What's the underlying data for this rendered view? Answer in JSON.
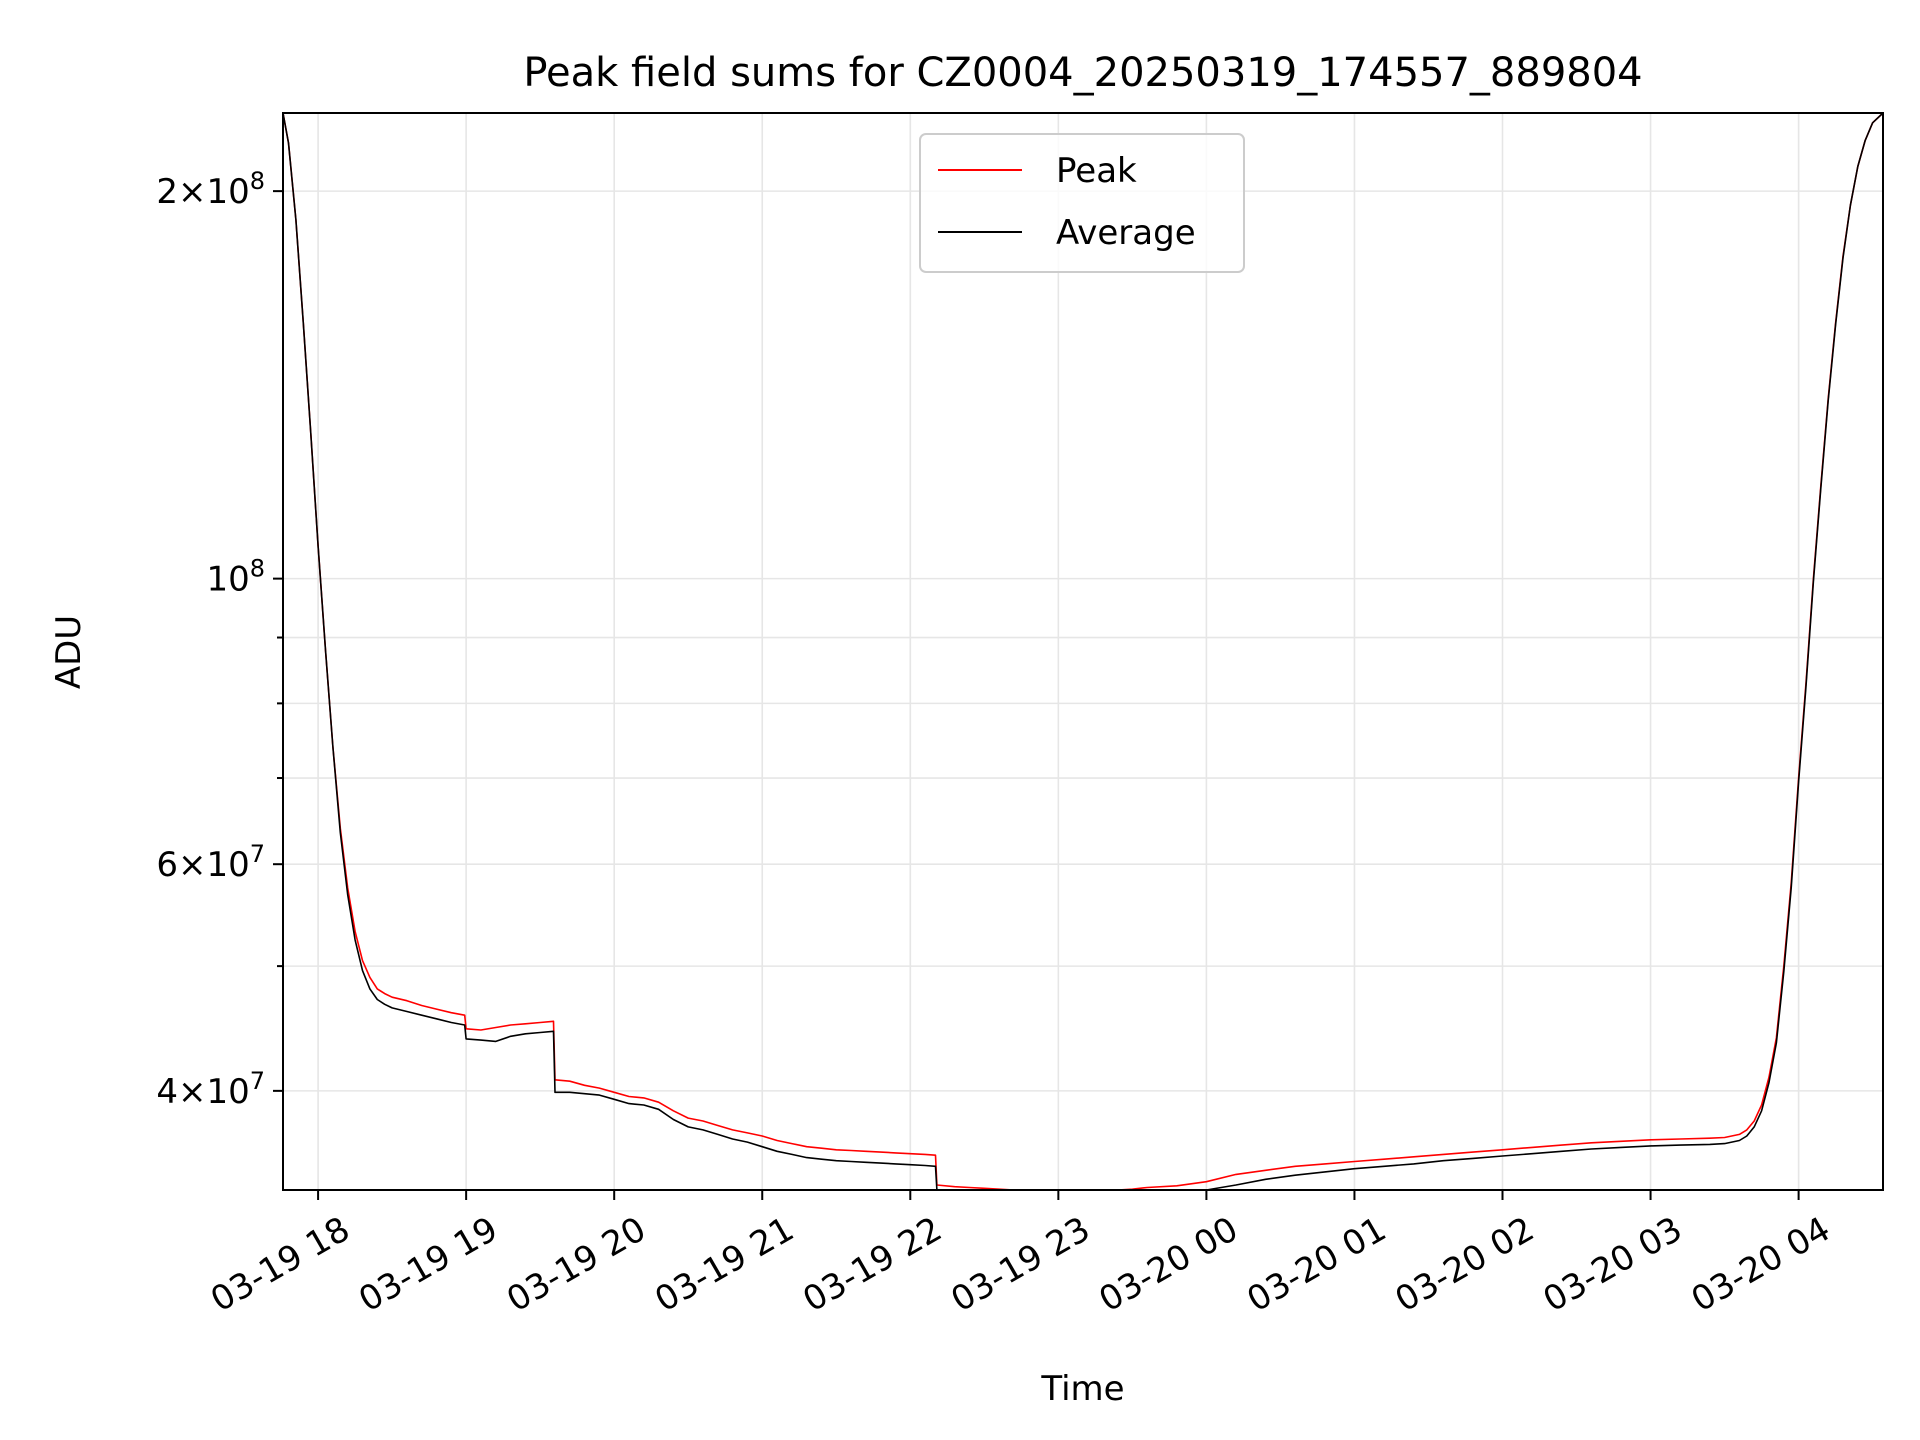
{
  "chart_data": {
    "type": "line",
    "title": "Peak field sums for CZ0004_20250319_174557_889804",
    "xlabel": "Time",
    "ylabel": "ADU",
    "yscale": "log",
    "x_unit": "hours since 03-19 17:00",
    "xlim": [
      0.763,
      11.57
    ],
    "ylim": [
      33500000.0,
      230000000.0
    ],
    "grid": true,
    "legend_position": "upper-center",
    "x_ticks": [
      {
        "value": 1,
        "label": "03-19 18"
      },
      {
        "value": 2,
        "label": "03-19 19"
      },
      {
        "value": 3,
        "label": "03-19 20"
      },
      {
        "value": 4,
        "label": "03-19 21"
      },
      {
        "value": 5,
        "label": "03-19 22"
      },
      {
        "value": 6,
        "label": "03-19 23"
      },
      {
        "value": 7,
        "label": "03-20 00"
      },
      {
        "value": 8,
        "label": "03-20 01"
      },
      {
        "value": 9,
        "label": "03-20 02"
      },
      {
        "value": 10,
        "label": "03-20 03"
      },
      {
        "value": 11,
        "label": "03-20 04"
      }
    ],
    "y_ticks": [
      {
        "value": 40000000,
        "mantissa": "4",
        "exp": "7"
      },
      {
        "value": 60000000,
        "mantissa": "6",
        "exp": "7"
      },
      {
        "value": 100000000,
        "mantissa": "",
        "exp": "8"
      },
      {
        "value": 200000000,
        "mantissa": "2",
        "exp": "8"
      }
    ],
    "y_minor_ticks": [
      50000000,
      70000000,
      80000000,
      90000000
    ],
    "series": [
      {
        "name": "Peak",
        "color": "#ff0000",
        "x": [
          0.763,
          0.8,
          0.85,
          0.9,
          0.95,
          1.0,
          1.05,
          1.1,
          1.15,
          1.2,
          1.25,
          1.3,
          1.35,
          1.4,
          1.45,
          1.5,
          1.6,
          1.7,
          1.8,
          1.9,
          1.99,
          2.0,
          2.1,
          2.2,
          2.3,
          2.4,
          2.5,
          2.59,
          2.6,
          2.7,
          2.8,
          2.9,
          3.0,
          3.1,
          3.2,
          3.3,
          3.4,
          3.5,
          3.6,
          3.7,
          3.8,
          3.9,
          4.0,
          4.1,
          4.2,
          4.3,
          4.4,
          4.5,
          4.6,
          4.7,
          4.8,
          4.9,
          5.0,
          5.1,
          5.17,
          5.18,
          5.3,
          5.4,
          5.5,
          5.6,
          5.7,
          5.8,
          5.99,
          6.0,
          6.1,
          6.2,
          6.3,
          6.4,
          6.5,
          6.6,
          6.8,
          7.0,
          7.2,
          7.4,
          7.6,
          7.8,
          8.0,
          8.2,
          8.4,
          8.6,
          8.8,
          9.0,
          9.2,
          9.4,
          9.6,
          9.8,
          10.0,
          10.2,
          10.4,
          10.5,
          10.6,
          10.65,
          10.7,
          10.75,
          10.8,
          10.85,
          10.9,
          10.95,
          11.0,
          11.05,
          11.1,
          11.15,
          11.2,
          11.25,
          11.3,
          11.35,
          11.4,
          11.45,
          11.5,
          11.57
        ],
        "y": [
          230000000,
          218000000,
          190000000,
          158000000,
          130000000,
          106000000,
          88000000,
          74000000,
          64000000,
          57500000,
          53200000,
          50500000,
          49000000,
          48000000,
          47600000,
          47300000,
          47000000,
          46600000,
          46300000,
          46000000,
          45800000,
          44700000,
          44600000,
          44800000,
          45000000,
          45100000,
          45200000,
          45300000,
          40800000,
          40700000,
          40400000,
          40200000,
          39900000,
          39600000,
          39500000,
          39200000,
          38600000,
          38100000,
          37900000,
          37600000,
          37300000,
          37100000,
          36900000,
          36600000,
          36400000,
          36200000,
          36100000,
          36000000,
          35950000,
          35900000,
          35850000,
          35800000,
          35750000,
          35700000,
          35650000,
          33800000,
          33700000,
          33650000,
          33600000,
          33550000,
          33500000,
          33450000,
          33400000,
          33100000,
          33200000,
          33300000,
          33350000,
          33450000,
          33550000,
          33650000,
          33750000,
          34000000,
          34450000,
          34700000,
          34950000,
          35100000,
          35250000,
          35400000,
          35550000,
          35700000,
          35850000,
          36000000,
          36150000,
          36300000,
          36450000,
          36550000,
          36650000,
          36700000,
          36750000,
          36800000,
          37000000,
          37300000,
          37900000,
          39000000,
          41000000,
          44000000,
          50000000,
          58000000,
          70000000,
          83000000,
          100000000,
          118000000,
          138000000,
          158000000,
          178000000,
          195000000,
          209000000,
          219000000,
          226000000,
          230000000
        ]
      },
      {
        "name": "Average",
        "color": "#000000",
        "x": [
          0.763,
          0.8,
          0.85,
          0.9,
          0.95,
          1.0,
          1.05,
          1.1,
          1.15,
          1.2,
          1.25,
          1.3,
          1.35,
          1.4,
          1.45,
          1.5,
          1.6,
          1.7,
          1.8,
          1.9,
          1.99,
          2.0,
          2.1,
          2.2,
          2.3,
          2.4,
          2.5,
          2.59,
          2.6,
          2.7,
          2.8,
          2.9,
          3.0,
          3.1,
          3.2,
          3.3,
          3.4,
          3.5,
          3.6,
          3.7,
          3.8,
          3.9,
          4.0,
          4.1,
          4.2,
          4.3,
          4.4,
          4.5,
          4.6,
          4.7,
          4.8,
          4.9,
          5.0,
          5.1,
          5.17,
          5.18,
          5.3,
          5.4,
          5.5,
          5.6,
          5.7,
          5.8,
          5.99,
          6.0,
          6.1,
          6.2,
          6.3,
          6.4,
          6.5,
          6.6,
          6.8,
          7.0,
          7.2,
          7.4,
          7.6,
          7.8,
          8.0,
          8.2,
          8.4,
          8.6,
          8.8,
          9.0,
          9.2,
          9.4,
          9.6,
          9.8,
          10.0,
          10.2,
          10.4,
          10.5,
          10.6,
          10.65,
          10.7,
          10.75,
          10.8,
          10.85,
          10.9,
          10.95,
          11.0,
          11.05,
          11.1,
          11.15,
          11.2,
          11.25,
          11.3,
          11.35,
          11.4,
          11.45,
          11.5,
          11.57
        ],
        "y": [
          230000000,
          218000000,
          190000000,
          158000000,
          130000000,
          106000000,
          88000000,
          74000000,
          63500000,
          56800000,
          52400000,
          49600000,
          48000000,
          47100000,
          46700000,
          46400000,
          46100000,
          45800000,
          45500000,
          45200000,
          45000000,
          43900000,
          43800000,
          43700000,
          44100000,
          44300000,
          44400000,
          44500000,
          39900000,
          39900000,
          39800000,
          39700000,
          39400000,
          39100000,
          39000000,
          38700000,
          38000000,
          37500000,
          37300000,
          37000000,
          36700000,
          36500000,
          36200000,
          35900000,
          35700000,
          35500000,
          35400000,
          35300000,
          35250000,
          35200000,
          35150000,
          35100000,
          35050000,
          35000000,
          34950000,
          33100000,
          33000000,
          32950000,
          32900000,
          32850000,
          32800000,
          32750000,
          32700000,
          32450000,
          32500000,
          32600000,
          32650000,
          32750000,
          32850000,
          32950000,
          33050000,
          33300000,
          33800000,
          34150000,
          34400000,
          34600000,
          34800000,
          34950000,
          35100000,
          35300000,
          35450000,
          35600000,
          35750000,
          35900000,
          36050000,
          36150000,
          36250000,
          36300000,
          36350000,
          36400000,
          36600000,
          36900000,
          37500000,
          38600000,
          40600000,
          43600000,
          49500000,
          57500000,
          69500000,
          82500000,
          99500000,
          117500000,
          137500000,
          157500000,
          177500000,
          195000000,
          209000000,
          219000000,
          226000000,
          230000000
        ]
      }
    ]
  }
}
